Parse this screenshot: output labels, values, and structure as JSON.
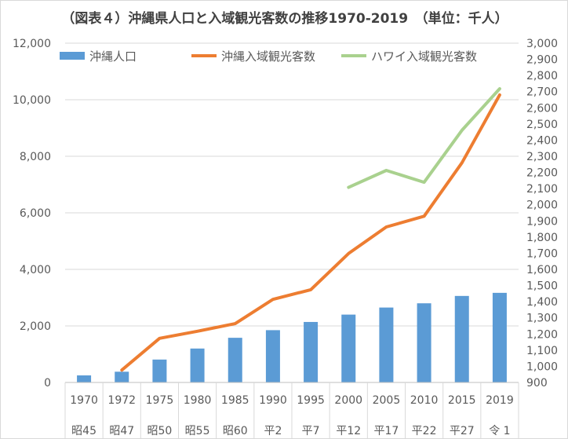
{
  "chart_data": {
    "type": "bar+line",
    "title": "（図表４）沖縄県人口と入域観光客数の推移1970-2019　（単位：千人）",
    "categories": [
      "1970",
      "1972",
      "1975",
      "1980",
      "1985",
      "1990",
      "1995",
      "2000",
      "2005",
      "2010",
      "2015",
      "2019"
    ],
    "era_labels": [
      "昭45",
      "昭47",
      "昭50",
      "昭55",
      "昭60",
      "平2",
      "平7",
      "平12",
      "平17",
      "平22",
      "平27",
      "令 1"
    ],
    "ylim_left": [
      0,
      12000
    ],
    "left_ticks": [
      "0",
      "2,000",
      "4,000",
      "6,000",
      "8,000",
      "10,000",
      "12,000"
    ],
    "ylim_right": [
      900,
      3000
    ],
    "right_ticks": [
      "900",
      "1,000",
      "1,100",
      "1,200",
      "1,300",
      "1,400",
      "1,500",
      "1,600",
      "1,700",
      "1,800",
      "1,900",
      "2,000",
      "2,100",
      "2,200",
      "2,300",
      "2,400",
      "2,500",
      "2,600",
      "2,700",
      "2,800",
      "2,900",
      "3,000"
    ],
    "grid": true,
    "legend_position": "top",
    "series": [
      {
        "name": "沖縄人口",
        "kind": "bar",
        "axis": "left",
        "color": "#5b9bd5",
        "values": [
          250,
          380,
          810,
          1200,
          1580,
          1850,
          2140,
          2400,
          2650,
          2800,
          3060,
          3170
        ]
      },
      {
        "name": "沖縄入域観光客数",
        "kind": "line",
        "axis": "left",
        "color": "#ed7d31",
        "values": [
          null,
          440,
          1560,
          1810,
          2080,
          2940,
          3280,
          4560,
          5500,
          5880,
          7770,
          10170
        ]
      },
      {
        "name": "ハワイ入域観光客数",
        "kind": "line",
        "axis": "left",
        "color": "#a9d18e",
        "values": [
          null,
          null,
          null,
          null,
          null,
          null,
          null,
          6900,
          7500,
          7080,
          8920,
          10390
        ]
      }
    ]
  }
}
